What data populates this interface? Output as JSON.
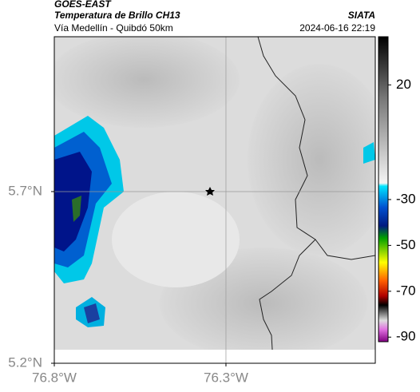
{
  "header": {
    "title": "GOES-EAST",
    "subtitle": "Temperatura de Brillo CH13",
    "source": "SIATA",
    "region": "Vía Medellín - Quibdó 50km",
    "datetime": "2024-06-16 22:19"
  },
  "map": {
    "lonlim": [
      -76.8,
      -75.865
    ],
    "latlim": [
      5.2,
      6.151
    ],
    "lon_ticks": [
      {
        "value": -76.8,
        "label": "76.8°W"
      },
      {
        "value": -76.3,
        "label": "76.3°W"
      }
    ],
    "lat_ticks": [
      {
        "value": 5.7,
        "label": "5.7°N"
      },
      {
        "value": 5.2,
        "label": "5.2°N"
      }
    ],
    "grid": true,
    "colorbar": {
      "clim": [
        -92,
        41
      ],
      "ticks": [
        20,
        -30,
        -50,
        -70,
        -90
      ]
    }
  }
}
